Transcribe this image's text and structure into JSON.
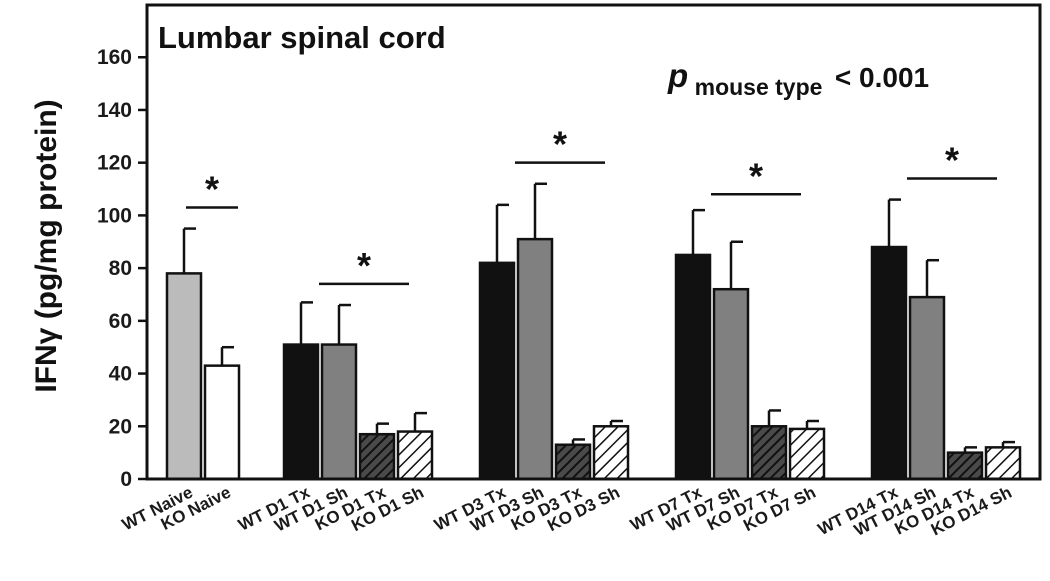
{
  "chart_data": {
    "type": "bar",
    "title": "Lumbar spinal cord",
    "ylabel": "IFNγ (pg/mg protein)",
    "xlabel": "",
    "ylim": [
      0,
      160
    ],
    "yticks": [
      "0",
      "20",
      "40",
      "60",
      "80",
      "100",
      "120",
      "140",
      "160"
    ],
    "annotation": {
      "p_symbol": "p",
      "p_subscript": "mouse type",
      "p_text": "< 0.001"
    },
    "significance_marker": "*",
    "groups": [
      {
        "bars": [
          {
            "label": "WT Naive",
            "value": 78,
            "error": 17,
            "fill": "light_gray"
          },
          {
            "label": "KO Naive",
            "value": 43,
            "error": 7,
            "fill": "white"
          }
        ]
      },
      {
        "bars": [
          {
            "label": "WT D1 Tx",
            "value": 51,
            "error": 16,
            "fill": "black"
          },
          {
            "label": "WT D1 Sh",
            "value": 51,
            "error": 15,
            "fill": "gray"
          },
          {
            "label": "KO D1 Tx",
            "value": 17,
            "error": 4,
            "fill": "black_hatch"
          },
          {
            "label": "KO D1 Sh",
            "value": 18,
            "error": 7,
            "fill": "white_hatch"
          }
        ]
      },
      {
        "bars": [
          {
            "label": "WT D3 Tx",
            "value": 82,
            "error": 22,
            "fill": "black"
          },
          {
            "label": "WT D3 Sh",
            "value": 91,
            "error": 21,
            "fill": "gray"
          },
          {
            "label": "KO D3 Tx",
            "value": 13,
            "error": 2,
            "fill": "black_hatch"
          },
          {
            "label": "KO D3 Sh",
            "value": 20,
            "error": 2,
            "fill": "white_hatch"
          }
        ]
      },
      {
        "bars": [
          {
            "label": "WT D7 Tx",
            "value": 85,
            "error": 17,
            "fill": "black"
          },
          {
            "label": "WT D7 Sh",
            "value": 72,
            "error": 18,
            "fill": "gray"
          },
          {
            "label": "KO D7 Tx",
            "value": 20,
            "error": 6,
            "fill": "black_hatch"
          },
          {
            "label": "KO D7 Sh",
            "value": 19,
            "error": 3,
            "fill": "white_hatch"
          }
        ]
      },
      {
        "bars": [
          {
            "label": "WT D14 Tx",
            "value": 88,
            "error": 18,
            "fill": "black"
          },
          {
            "label": "WT D14 Sh",
            "value": 69,
            "error": 14,
            "fill": "gray"
          },
          {
            "label": "KO D14 Tx",
            "value": 10,
            "error": 2,
            "fill": "black_hatch"
          },
          {
            "label": "KO D14 Sh",
            "value": 12,
            "error": 2,
            "fill": "white_hatch"
          }
        ]
      }
    ],
    "significance": [
      {
        "group": 0,
        "value": 103
      },
      {
        "group": 1,
        "value": 74
      },
      {
        "group": 2,
        "value": 120
      },
      {
        "group": 3,
        "value": 108
      },
      {
        "group": 4,
        "value": 114
      }
    ],
    "colors": {
      "light_gray": "#bbbbbb",
      "white": "#ffffff",
      "black": "#111111",
      "gray": "#808080",
      "axis": "#111111"
    }
  }
}
